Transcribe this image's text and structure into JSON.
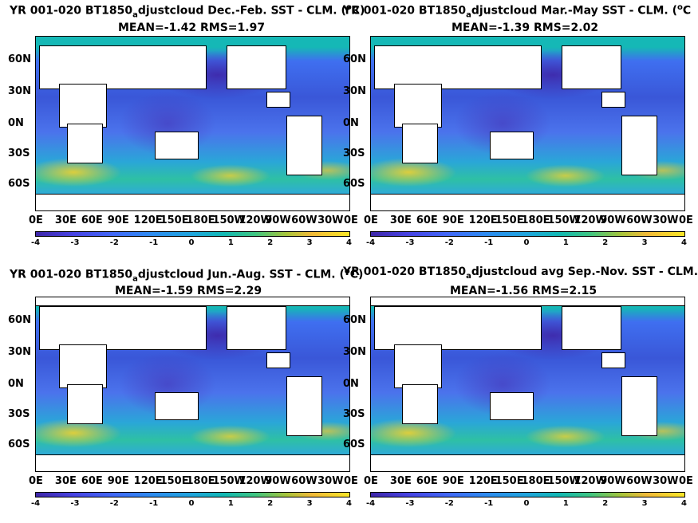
{
  "panels": [
    {
      "title_pre": "YR 001-020 BT1850",
      "title_sub": "a",
      "title_post": "djustcloud  Dec.-Feb. SST - CLM. (",
      "title_sup": "o",
      "title_end": "C)",
      "stats": "MEAN=-1.42   RMS=1.97"
    },
    {
      "title_pre": "YR 001-020 BT1850",
      "title_sub": "a",
      "title_post": "djustcloud Mar.-May SST - CLM. (",
      "title_sup": "o",
      "title_end": "C",
      "stats": "MEAN=-1.39   RMS=2.02"
    },
    {
      "title_pre": "YR 001-020 BT1850",
      "title_sub": "a",
      "title_post": "djustcloud Jun.-Aug. SST - CLM. (",
      "title_sup": "o",
      "title_end": "C)",
      "stats": "MEAN=-1.59   RMS=2.29"
    },
    {
      "title_pre": "YR 001-020 BT1850",
      "title_sub": "a",
      "title_post": "djustcloud avg Sep.-Nov. SST - CLM. (",
      "title_sup": "",
      "title_end": "",
      "stats": "MEAN=-1.56   RMS=2.15"
    }
  ],
  "lat_ticks": [
    "60N",
    "30N",
    "0N",
    "30S",
    "60S"
  ],
  "lon_ticks": [
    "0E",
    "30E",
    "60E",
    "90E",
    "120E",
    "150E",
    "180E",
    "150W",
    "120W",
    "90W",
    "60W",
    "30W",
    "0E"
  ],
  "colorbar_ticks": [
    "-4",
    "-3",
    "-2",
    "-1",
    "0",
    "1",
    "2",
    "3",
    "4"
  ],
  "colors": {
    "colormap_low": "#3e26a8",
    "colormap_mid": "#11b8b3",
    "colormap_high": "#f9e627",
    "land": "#ffffff"
  },
  "chart_data": [
    {
      "type": "heatmap",
      "title": "YR 001-020 BT1850_adjustcloud  Dec.-Feb. SST - CLM. (oC)",
      "subtitle": "MEAN=-1.42   RMS=1.97",
      "mean": -1.42,
      "rms": 1.97,
      "clim": [
        -4,
        4
      ]
    },
    {
      "type": "heatmap",
      "title": "YR 001-020 BT1850_adjustcloud Mar.-May SST - CLM. (oC",
      "subtitle": "MEAN=-1.39   RMS=2.02",
      "mean": -1.39,
      "rms": 2.02,
      "clim": [
        -4,
        4
      ]
    },
    {
      "type": "heatmap",
      "title": "YR 001-020 BT1850_adjustcloud Jun.-Aug. SST - CLM. (oC)",
      "subtitle": "MEAN=-1.59   RMS=2.29",
      "mean": -1.59,
      "rms": 2.29,
      "clim": [
        -4,
        4
      ]
    },
    {
      "type": "heatmap",
      "title": "YR 001-020 BT1850_adjustcloud avg Sep.-Nov. SST - CLM. (",
      "subtitle": "MEAN=-1.56   RMS=2.15",
      "mean": -1.56,
      "rms": 2.15,
      "clim": [
        -4,
        4
      ]
    }
  ]
}
